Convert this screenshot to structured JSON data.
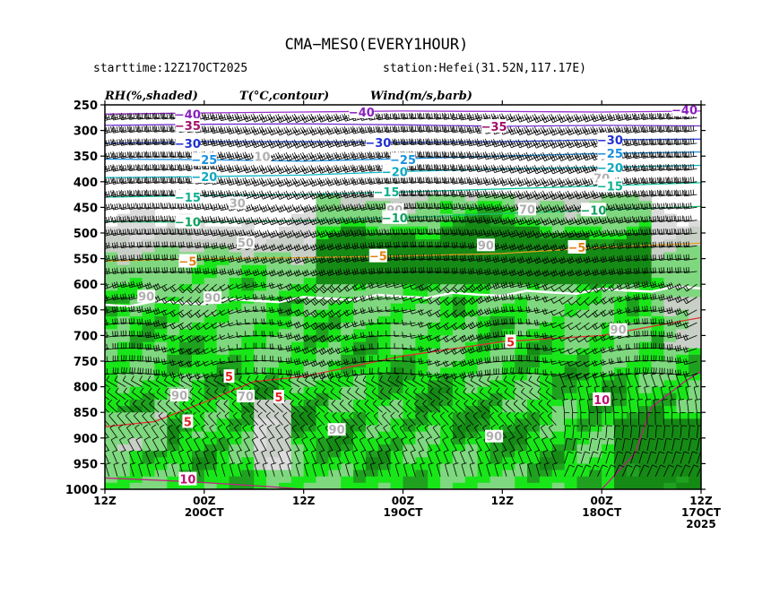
{
  "header": {
    "title": "CMA−MESO(EVERY1HOUR)",
    "starttime": "starttime:12Z17OCT2025",
    "station": "station:Hefei(31.52N,117.17E)"
  },
  "panel_labels": {
    "rh": "RH(%,shaded)",
    "temp": "T(°C,contour)",
    "wind": "Wind(m/s,barb)"
  },
  "colors": {
    "rh_light_gray": "#dcdcdc",
    "rh_gray": "#c8cfc6",
    "rh_light_green": "#7fd87f",
    "rh_green": "#19e619",
    "rh_dark_green": "#1fa11f",
    "rh_darkest_green": "#158a15",
    "barb": "#000000",
    "rh90_line": "#ffffff"
  },
  "chart_data": {
    "type": "heatmap",
    "title": "CMA−MESO(EVERY1HOUR)",
    "y_axis": {
      "label": "",
      "scale": "pressure (hPa), inverted",
      "ticks": [
        250,
        300,
        350,
        400,
        450,
        500,
        550,
        600,
        650,
        700,
        750,
        800,
        850,
        900,
        950,
        1000
      ],
      "range": [
        1000,
        250
      ]
    },
    "x_axis": {
      "label": "",
      "direction": "time decreases to the right",
      "ticks": [
        {
          "hour": 0,
          "label": "12Z",
          "line2": "",
          "line3": ""
        },
        {
          "hour": 12,
          "label": "00Z",
          "line2": "20OCT",
          "line3": ""
        },
        {
          "hour": 24,
          "label": "12Z",
          "line2": "",
          "line3": ""
        },
        {
          "hour": 36,
          "label": "00Z",
          "line2": "19OCT",
          "line3": ""
        },
        {
          "hour": 48,
          "label": "12Z",
          "line2": "",
          "line3": ""
        },
        {
          "hour": 60,
          "label": "00Z",
          "line2": "18OCT",
          "line3": ""
        },
        {
          "hour": 72,
          "label": "12Z",
          "line2": "17OCT",
          "line3": "2025"
        }
      ]
    },
    "rh_shading_levels": [
      70,
      80,
      90,
      95
    ],
    "temperature_contours": [
      {
        "value": -40,
        "color": "#9b30d0",
        "label_color": "#8a1fc0",
        "points": [
          [
            0,
            268
          ],
          [
            10,
            266
          ],
          [
            24,
            264
          ],
          [
            36,
            262
          ],
          [
            48,
            263
          ],
          [
            60,
            264
          ],
          [
            72,
            262
          ]
        ]
      },
      {
        "value": -35,
        "color": "#7030d0",
        "label_color": "#a0106a",
        "points": [
          [
            0,
            290
          ],
          [
            12,
            288
          ],
          [
            24,
            287
          ],
          [
            36,
            289
          ],
          [
            48,
            292
          ],
          [
            60,
            290
          ],
          [
            72,
            291
          ]
        ]
      },
      {
        "value": -30,
        "color": "#3050e0",
        "label_color": "#2030d0",
        "points": [
          [
            0,
            325
          ],
          [
            12,
            322
          ],
          [
            24,
            322
          ],
          [
            36,
            323
          ],
          [
            48,
            322
          ],
          [
            60,
            318
          ],
          [
            72,
            317
          ]
        ]
      },
      {
        "value": -25,
        "color": "#1890e0",
        "label_color": "#1890e0",
        "points": [
          [
            0,
            356
          ],
          [
            12,
            357
          ],
          [
            24,
            360
          ],
          [
            36,
            355
          ],
          [
            48,
            350
          ],
          [
            60,
            345
          ],
          [
            72,
            342
          ]
        ]
      },
      {
        "value": -20,
        "color": "#10b8c8",
        "label_color": "#10a8c0",
        "points": [
          [
            0,
            392
          ],
          [
            12,
            390
          ],
          [
            24,
            387
          ],
          [
            36,
            380
          ],
          [
            48,
            375
          ],
          [
            60,
            372
          ],
          [
            72,
            368
          ]
        ]
      },
      {
        "value": -15,
        "color": "#10c8a0",
        "label_color": "#10b090",
        "points": [
          [
            0,
            430
          ],
          [
            12,
            427
          ],
          [
            24,
            425
          ],
          [
            36,
            420
          ],
          [
            48,
            414
          ],
          [
            60,
            408
          ],
          [
            72,
            402
          ]
        ]
      },
      {
        "value": -10,
        "color": "#20c070",
        "label_color": "#10a060",
        "points": [
          [
            0,
            478
          ],
          [
            12,
            479
          ],
          [
            24,
            476
          ],
          [
            36,
            470
          ],
          [
            48,
            462
          ],
          [
            60,
            455
          ],
          [
            72,
            448
          ]
        ]
      },
      {
        "value": -5,
        "color": "#e0a020",
        "label_color": "#e08010",
        "points": [
          [
            0,
            555
          ],
          [
            12,
            550
          ],
          [
            24,
            548
          ],
          [
            36,
            545
          ],
          [
            48,
            540
          ],
          [
            60,
            528
          ],
          [
            72,
            520
          ]
        ]
      },
      {
        "value": 0,
        "color": "#ffffff",
        "label_color": "#ffffff",
        "points": [
          [
            0,
            640
          ],
          [
            12,
            630
          ],
          [
            24,
            625
          ],
          [
            36,
            620
          ],
          [
            48,
            615
          ],
          [
            60,
            610
          ],
          [
            72,
            605
          ]
        ]
      },
      {
        "value": 5,
        "color": "#e03030",
        "label_color": "#e02020",
        "points": [
          [
            0,
            878
          ],
          [
            6,
            868
          ],
          [
            12,
            830
          ],
          [
            18,
            790
          ],
          [
            24,
            780
          ],
          [
            36,
            740
          ],
          [
            48,
            712
          ],
          [
            60,
            700
          ],
          [
            72,
            665
          ]
        ]
      },
      {
        "value": 10,
        "color": "#c02080",
        "label_color": "#c01070",
        "points": [
          [
            0,
            978
          ],
          [
            10,
            985
          ],
          [
            20,
            995
          ],
          [
            24,
            1000
          ],
          [
            60,
            1000
          ],
          [
            64,
            930
          ],
          [
            66,
            840
          ],
          [
            70,
            790
          ],
          [
            72,
            770
          ]
        ]
      }
    ],
    "temperature_label_positions": [
      {
        "value": -40,
        "hour": 10,
        "p": 268
      },
      {
        "value": -40,
        "hour": 31,
        "p": 264
      },
      {
        "value": -40,
        "hour": 70,
        "p": 260
      },
      {
        "value": -35,
        "hour": 10,
        "p": 290
      },
      {
        "value": -35,
        "hour": 47,
        "p": 292
      },
      {
        "value": -30,
        "hour": 10,
        "p": 325
      },
      {
        "value": -30,
        "hour": 33,
        "p": 323
      },
      {
        "value": -30,
        "hour": 61,
        "p": 318
      },
      {
        "value": -25,
        "hour": 12,
        "p": 357
      },
      {
        "value": -25,
        "hour": 36,
        "p": 357
      },
      {
        "value": -25,
        "hour": 61,
        "p": 344
      },
      {
        "value": -20,
        "hour": 12,
        "p": 390
      },
      {
        "value": -20,
        "hour": 35,
        "p": 380
      },
      {
        "value": -20,
        "hour": 61,
        "p": 372
      },
      {
        "value": -15,
        "hour": 10,
        "p": 430
      },
      {
        "value": -15,
        "hour": 34,
        "p": 420
      },
      {
        "value": -15,
        "hour": 61,
        "p": 408
      },
      {
        "value": -10,
        "hour": 10,
        "p": 478
      },
      {
        "value": -10,
        "hour": 35,
        "p": 470
      },
      {
        "value": -10,
        "hour": 59,
        "p": 455
      },
      {
        "value": -5,
        "hour": 10,
        "p": 555
      },
      {
        "value": -5,
        "hour": 33,
        "p": 545
      },
      {
        "value": -5,
        "hour": 57,
        "p": 528
      },
      {
        "value": 5,
        "hour": 15,
        "p": 780
      },
      {
        "value": 5,
        "hour": 21,
        "p": 820
      },
      {
        "value": 5,
        "hour": 10,
        "p": 868
      },
      {
        "value": 5,
        "hour": 49,
        "p": 712
      },
      {
        "value": 10,
        "hour": 10,
        "p": 980
      },
      {
        "value": 10,
        "hour": 60,
        "p": 825
      }
    ],
    "rh_label_positions": [
      {
        "value": 10,
        "hour": 19,
        "p": 352
      },
      {
        "value": 30,
        "hour": 16,
        "p": 443
      },
      {
        "value": 50,
        "hour": 17,
        "p": 520
      },
      {
        "value": 70,
        "hour": 51,
        "p": 455
      },
      {
        "value": 70,
        "hour": 60,
        "p": 394
      },
      {
        "value": 90,
        "hour": 35,
        "p": 456
      },
      {
        "value": 90,
        "hour": 46,
        "p": 525
      },
      {
        "value": 90,
        "hour": 5,
        "p": 625
      },
      {
        "value": 90,
        "hour": 13,
        "p": 628
      },
      {
        "value": 90,
        "hour": 9,
        "p": 818
      },
      {
        "value": 70,
        "hour": 17,
        "p": 820
      },
      {
        "value": 90,
        "hour": 62,
        "p": 690
      },
      {
        "value": 90,
        "hour": 47,
        "p": 898
      },
      {
        "value": 90,
        "hour": 28,
        "p": 885
      }
    ],
    "wind_levels_hpa": [
      275,
      300,
      325,
      350,
      375,
      400,
      425,
      450,
      475,
      500,
      525,
      550,
      575,
      600,
      625,
      650,
      675,
      700,
      725,
      750,
      775,
      800,
      825,
      850,
      875,
      900,
      925,
      950,
      975
    ],
    "wind_interval_hours": 1
  }
}
